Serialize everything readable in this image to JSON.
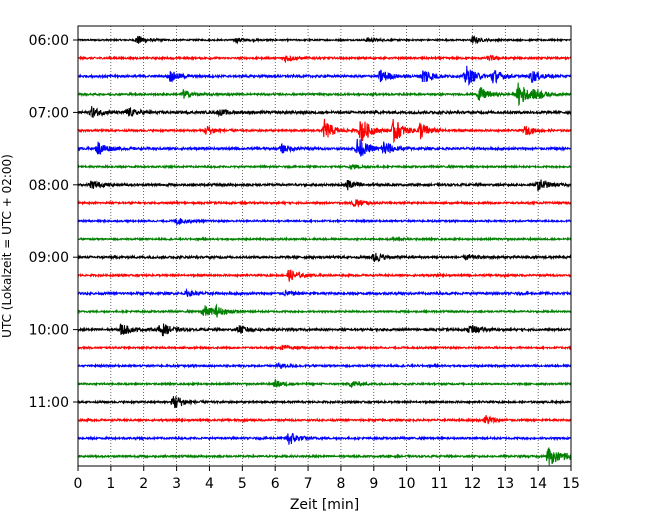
{
  "chart_data": {
    "type": "line",
    "title": "",
    "xlabel": "Zeit  [min]",
    "ylabel": "UTC (Lokalzeit = UTC + 02:00)",
    "xlim": [
      0,
      15
    ],
    "x_ticks": [
      "0",
      "1",
      "2",
      "3",
      "4",
      "5",
      "6",
      "7",
      "8",
      "9",
      "10",
      "11",
      "12",
      "13",
      "14",
      "15"
    ],
    "y_tick_labels": [
      "06:00",
      "07:00",
      "08:00",
      "09:00",
      "10:00",
      "11:00"
    ],
    "grid": "vertical dotted",
    "legend": "none",
    "trace_interval_min": 15,
    "start_time": "06:00",
    "series_colors": [
      "#000000",
      "#ff0000",
      "#0000ff",
      "#008000"
    ],
    "series": [
      {
        "start": "06:00",
        "amp": 0.08,
        "events": [
          [
            1.8,
            0.5
          ],
          [
            4.8,
            0.25
          ],
          [
            8.8,
            0.25
          ],
          [
            12.0,
            0.4
          ]
        ]
      },
      {
        "start": "06:15",
        "amp": 0.1,
        "events": [
          [
            6.3,
            0.45
          ],
          [
            12.5,
            0.3
          ]
        ]
      },
      {
        "start": "06:30",
        "amp": 0.12,
        "events": [
          [
            2.8,
            0.6
          ],
          [
            9.2,
            0.8
          ],
          [
            10.5,
            1.0
          ],
          [
            11.8,
            1.2
          ],
          [
            12.6,
            0.9
          ],
          [
            13.8,
            0.7
          ]
        ]
      },
      {
        "start": "06:45",
        "amp": 0.1,
        "events": [
          [
            3.2,
            0.5
          ],
          [
            12.2,
            0.9
          ],
          [
            13.4,
            1.5
          ],
          [
            13.9,
            0.6
          ]
        ]
      },
      {
        "start": "07:00",
        "amp": 0.14,
        "events": [
          [
            0.4,
            0.6
          ],
          [
            1.5,
            0.5
          ],
          [
            4.3,
            0.3
          ]
        ]
      },
      {
        "start": "07:15",
        "amp": 0.1,
        "events": [
          [
            3.9,
            0.6
          ],
          [
            7.5,
            1.2
          ],
          [
            8.6,
            1.6
          ],
          [
            9.6,
            1.5
          ],
          [
            10.4,
            1.0
          ],
          [
            13.6,
            0.5
          ]
        ]
      },
      {
        "start": "07:30",
        "amp": 0.12,
        "events": [
          [
            0.6,
            0.8
          ],
          [
            6.2,
            0.5
          ],
          [
            8.5,
            1.3
          ],
          [
            9.3,
            0.9
          ]
        ]
      },
      {
        "start": "07:45",
        "amp": 0.09,
        "events": [
          [
            8.3,
            0.3
          ]
        ]
      },
      {
        "start": "08:00",
        "amp": 0.12,
        "events": [
          [
            0.4,
            0.5
          ],
          [
            8.2,
            0.6
          ],
          [
            14.0,
            0.7
          ]
        ]
      },
      {
        "start": "08:15",
        "amp": 0.1,
        "events": [
          [
            8.4,
            0.5
          ]
        ]
      },
      {
        "start": "08:30",
        "amp": 0.09,
        "events": [
          [
            3.0,
            0.4
          ]
        ]
      },
      {
        "start": "08:45",
        "amp": 0.09,
        "events": [
          [
            9.6,
            0.2
          ]
        ]
      },
      {
        "start": "09:00",
        "amp": 0.12,
        "events": [
          [
            9.0,
            0.6
          ],
          [
            11.8,
            0.3
          ]
        ]
      },
      {
        "start": "09:15",
        "amp": 0.1,
        "events": [
          [
            6.4,
            0.7
          ]
        ]
      },
      {
        "start": "09:30",
        "amp": 0.12,
        "events": [
          [
            3.3,
            0.3
          ],
          [
            6.3,
            0.25
          ]
        ]
      },
      {
        "start": "09:45",
        "amp": 0.09,
        "events": [
          [
            3.8,
            0.8
          ],
          [
            4.2,
            0.5
          ]
        ]
      },
      {
        "start": "10:00",
        "amp": 0.12,
        "events": [
          [
            1.3,
            0.7
          ],
          [
            2.5,
            0.9
          ],
          [
            4.9,
            0.5
          ],
          [
            11.9,
            0.6
          ]
        ]
      },
      {
        "start": "10:15",
        "amp": 0.09,
        "events": [
          [
            6.2,
            0.25
          ]
        ]
      },
      {
        "start": "10:30",
        "amp": 0.1,
        "events": [
          [
            6.1,
            0.3
          ]
        ]
      },
      {
        "start": "10:45",
        "amp": 0.09,
        "events": [
          [
            6.0,
            0.4
          ],
          [
            8.3,
            0.4
          ]
        ]
      },
      {
        "start": "11:00",
        "amp": 0.1,
        "events": [
          [
            2.9,
            1.0
          ]
        ]
      },
      {
        "start": "11:15",
        "amp": 0.1,
        "events": [
          [
            12.4,
            0.6
          ]
        ]
      },
      {
        "start": "11:30",
        "amp": 0.1,
        "events": [
          [
            6.4,
            0.9
          ]
        ]
      },
      {
        "start": "11:45",
        "amp": 0.1,
        "events": [
          [
            14.3,
            1.2
          ],
          [
            14.8,
            0.4
          ]
        ]
      }
    ]
  }
}
